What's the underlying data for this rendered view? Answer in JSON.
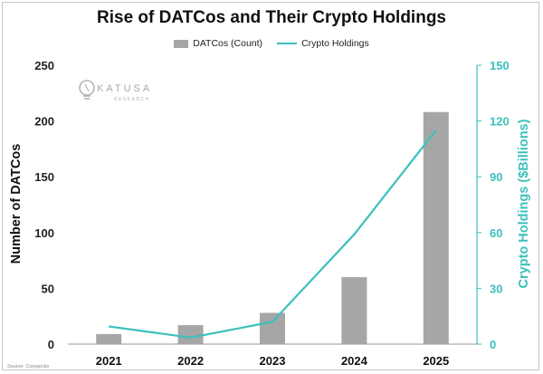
{
  "chart_data": {
    "type": "bar",
    "title": "Rise of DATCos and Their Crypto Holdings",
    "categories": [
      "2021",
      "2022",
      "2023",
      "2024",
      "2025"
    ],
    "series": [
      {
        "name": "DATCos (Count)",
        "type": "bar",
        "axis": "left",
        "color": "#a6a6a6",
        "values": [
          9,
          17,
          28,
          60,
          208
        ]
      },
      {
        "name": "Crypto Holdings",
        "type": "line",
        "axis": "right",
        "color": "#3cc0bd",
        "values": [
          9.5,
          3.5,
          12,
          59,
          115
        ]
      }
    ],
    "ylabel": "Number of DATCos",
    "ylabel_right": "Crypto Holdings ($Billions)",
    "ylim": [
      0,
      250
    ],
    "ylim_right": [
      0,
      150
    ],
    "yticks": [
      "0",
      "50",
      "100",
      "150",
      "200",
      "250"
    ],
    "yticks_right": [
      "0",
      "30",
      "60",
      "90",
      "120",
      "150"
    ],
    "legend": "top-center",
    "grid": false
  },
  "logo": {
    "name": "KATUSA",
    "sub": "RESEARCH"
  },
  "source": "Source: Coingecko"
}
